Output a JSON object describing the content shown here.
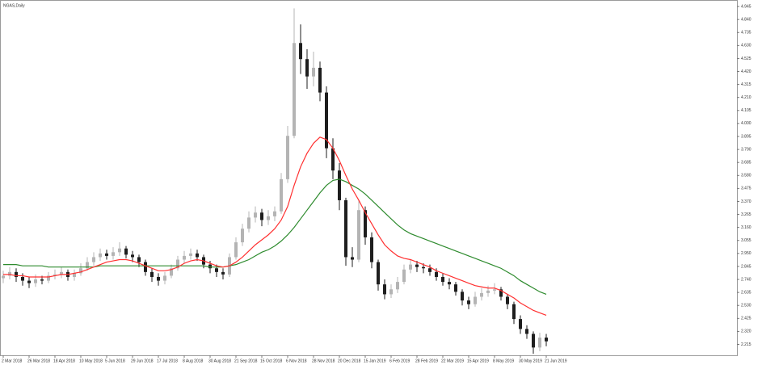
{
  "chart_data": {
    "type": "candlestick",
    "title": "NGAS,Daily",
    "categories": [
      "2 Mar 2018",
      null,
      null,
      null,
      "26 Mar 2018",
      null,
      null,
      null,
      "18 Apr 2018",
      null,
      null,
      null,
      "10 May 2018",
      null,
      null,
      null,
      "5 Jun 2018",
      null,
      null,
      null,
      "29 Jun 2018",
      null,
      null,
      null,
      "17 Jul 2018",
      null,
      null,
      null,
      "8 Aug 2018",
      null,
      null,
      null,
      "30 Aug 2018",
      null,
      null,
      null,
      "21 Sep 2018",
      null,
      null,
      null,
      "15 Oct 2018",
      null,
      null,
      null,
      "6 Nov 2018",
      null,
      null,
      null,
      "28 Nov 2018",
      null,
      null,
      null,
      "20 Dec 2018",
      null,
      null,
      null,
      "15 Jan 2019",
      null,
      null,
      null,
      "6 Feb 2019",
      null,
      null,
      null,
      "28 Feb 2019",
      null,
      null,
      null,
      "22 Mar 2019",
      null,
      null,
      null,
      "15 Apr 2019",
      null,
      null,
      null,
      "8 May 2019",
      null,
      null,
      null,
      "30 May 2019",
      null,
      null,
      null,
      "21 Jun 2019"
    ],
    "open": [
      2.75,
      2.77,
      2.8,
      2.76,
      2.73,
      2.71,
      2.74,
      2.73,
      2.77,
      2.78,
      2.8,
      2.76,
      2.79,
      2.83,
      2.88,
      2.92,
      2.95,
      2.93,
      2.96,
      2.99,
      2.94,
      2.92,
      2.88,
      2.8,
      2.76,
      2.73,
      2.77,
      2.83,
      2.9,
      2.93,
      2.95,
      2.92,
      2.86,
      2.83,
      2.8,
      2.78,
      2.92,
      3.04,
      3.15,
      3.24,
      3.28,
      3.22,
      3.25,
      3.29,
      3.55,
      3.9,
      4.65,
      4.52,
      4.38,
      4.45,
      4.25,
      3.8,
      3.62,
      3.38,
      2.92,
      2.9,
      3.3,
      3.08,
      2.88,
      2.7,
      2.62,
      2.66,
      2.72,
      2.82,
      2.86,
      2.84,
      2.83,
      2.8,
      2.76,
      2.72,
      2.7,
      2.64,
      2.57,
      2.54,
      2.6,
      2.63,
      2.65,
      2.66,
      2.6,
      2.54,
      2.42,
      2.34,
      2.3,
      2.19,
      2.27
    ],
    "high": [
      2.81,
      2.84,
      2.83,
      2.79,
      2.76,
      2.78,
      2.77,
      2.8,
      2.82,
      2.84,
      2.82,
      2.82,
      2.87,
      2.92,
      2.96,
      2.99,
      2.98,
      3.0,
      3.04,
      3.01,
      2.97,
      2.94,
      2.9,
      2.83,
      2.79,
      2.8,
      2.86,
      2.93,
      2.97,
      2.99,
      2.98,
      2.94,
      2.89,
      2.86,
      2.83,
      2.95,
      3.08,
      3.19,
      3.29,
      3.33,
      3.31,
      3.3,
      3.33,
      3.6,
      3.98,
      4.93,
      4.8,
      4.6,
      4.58,
      4.5,
      4.3,
      3.88,
      3.68,
      3.4,
      3.0,
      3.38,
      3.33,
      3.12,
      2.9,
      2.74,
      2.7,
      2.76,
      2.86,
      2.9,
      2.89,
      2.87,
      2.86,
      2.83,
      2.79,
      2.75,
      2.72,
      2.66,
      2.6,
      2.64,
      2.67,
      2.69,
      2.71,
      2.68,
      2.62,
      2.56,
      2.45,
      2.37,
      2.32,
      2.31,
      2.3
    ],
    "low": [
      2.71,
      2.74,
      2.72,
      2.69,
      2.67,
      2.68,
      2.7,
      2.71,
      2.74,
      2.75,
      2.73,
      2.73,
      2.77,
      2.81,
      2.85,
      2.89,
      2.9,
      2.9,
      2.93,
      2.91,
      2.88,
      2.84,
      2.77,
      2.72,
      2.69,
      2.7,
      2.75,
      2.81,
      2.87,
      2.9,
      2.89,
      2.83,
      2.79,
      2.76,
      2.74,
      2.76,
      2.9,
      3.01,
      3.12,
      3.2,
      3.17,
      3.18,
      3.21,
      3.27,
      3.52,
      3.88,
      4.4,
      4.28,
      4.3,
      4.18,
      3.72,
      3.55,
      3.3,
      2.85,
      2.84,
      2.88,
      3.02,
      2.83,
      2.65,
      2.58,
      2.59,
      2.63,
      2.7,
      2.79,
      2.8,
      2.79,
      2.77,
      2.73,
      2.69,
      2.66,
      2.61,
      2.53,
      2.5,
      2.52,
      2.57,
      2.6,
      2.62,
      2.57,
      2.5,
      2.38,
      2.3,
      2.26,
      2.14,
      2.16,
      2.2
    ],
    "close": [
      2.77,
      2.8,
      2.76,
      2.73,
      2.71,
      2.74,
      2.73,
      2.77,
      2.78,
      2.8,
      2.76,
      2.79,
      2.83,
      2.88,
      2.92,
      2.95,
      2.93,
      2.96,
      2.99,
      2.94,
      2.92,
      2.88,
      2.8,
      2.76,
      2.73,
      2.77,
      2.83,
      2.9,
      2.93,
      2.95,
      2.92,
      2.86,
      2.83,
      2.8,
      2.78,
      2.92,
      3.04,
      3.15,
      3.24,
      3.28,
      3.22,
      3.25,
      3.29,
      3.55,
      3.9,
      4.65,
      4.52,
      4.38,
      4.45,
      4.25,
      3.8,
      3.62,
      3.38,
      2.92,
      2.9,
      3.3,
      3.08,
      2.88,
      2.7,
      2.62,
      2.66,
      2.72,
      2.82,
      2.86,
      2.84,
      2.83,
      2.8,
      2.76,
      2.72,
      2.7,
      2.64,
      2.57,
      2.54,
      2.6,
      2.63,
      2.65,
      2.66,
      2.6,
      2.54,
      2.42,
      2.34,
      2.3,
      2.19,
      2.27,
      2.24
    ],
    "up_color": "#b4b4b4",
    "down_color": "#1e1e1e",
    "overlays": [
      {
        "color": "#2e8b2e",
        "values": [
          2.86,
          2.86,
          2.86,
          2.85,
          2.85,
          2.85,
          2.85,
          2.84,
          2.84,
          2.84,
          2.84,
          2.84,
          2.84,
          2.84,
          2.84,
          2.85,
          2.85,
          2.85,
          2.85,
          2.85,
          2.85,
          2.85,
          2.85,
          2.85,
          2.85,
          2.85,
          2.85,
          2.85,
          2.85,
          2.85,
          2.85,
          2.85,
          2.84,
          2.84,
          2.84,
          2.85,
          2.86,
          2.88,
          2.9,
          2.93,
          2.96,
          2.98,
          3.01,
          3.05,
          3.1,
          3.16,
          3.23,
          3.3,
          3.37,
          3.44,
          3.5,
          3.54,
          3.55,
          3.53,
          3.5,
          3.47,
          3.43,
          3.38,
          3.33,
          3.28,
          3.23,
          3.18,
          3.14,
          3.11,
          3.09,
          3.07,
          3.05,
          3.03,
          3.01,
          2.99,
          2.97,
          2.95,
          2.93,
          2.91,
          2.89,
          2.87,
          2.85,
          2.83,
          2.8,
          2.77,
          2.73,
          2.7,
          2.67,
          2.64,
          2.62
        ]
      },
      {
        "color": "#ff3030",
        "values": [
          2.78,
          2.78,
          2.77,
          2.77,
          2.76,
          2.76,
          2.76,
          2.76,
          2.77,
          2.78,
          2.78,
          2.79,
          2.8,
          2.82,
          2.84,
          2.86,
          2.88,
          2.89,
          2.9,
          2.9,
          2.89,
          2.87,
          2.85,
          2.83,
          2.81,
          2.81,
          2.82,
          2.84,
          2.87,
          2.89,
          2.9,
          2.89,
          2.87,
          2.85,
          2.84,
          2.85,
          2.88,
          2.92,
          2.97,
          3.02,
          3.06,
          3.1,
          3.15,
          3.22,
          3.33,
          3.5,
          3.65,
          3.76,
          3.84,
          3.89,
          3.87,
          3.8,
          3.7,
          3.58,
          3.47,
          3.38,
          3.28,
          3.19,
          3.1,
          3.02,
          2.97,
          2.93,
          2.91,
          2.9,
          2.88,
          2.86,
          2.84,
          2.81,
          2.79,
          2.77,
          2.75,
          2.73,
          2.71,
          2.69,
          2.68,
          2.67,
          2.67,
          2.65,
          2.62,
          2.59,
          2.55,
          2.52,
          2.49,
          2.47,
          2.45
        ]
      }
    ],
    "ylim": [
      2.127,
      4.978
    ],
    "yticks": [
      4.945,
      {
        "value": 4.84,
        "label": "4.840"
      },
      4.735,
      {
        "value": 4.63,
        "label": "4.630"
      },
      4.525,
      {
        "value": 4.42,
        "label": "4.420"
      },
      4.315,
      {
        "value": 4.21,
        "label": "4.210"
      },
      4.105,
      {
        "value": 4,
        "label": "4.000"
      },
      3.895,
      {
        "value": 3.79,
        "label": "3.790"
      },
      3.685,
      {
        "value": 3.58,
        "label": "3.580"
      },
      3.475,
      {
        "value": 3.37,
        "label": "3.370"
      },
      3.265,
      {
        "value": 3.16,
        "label": "3.160"
      },
      3.055,
      {
        "value": 2.95,
        "label": "2.950"
      },
      2.845,
      {
        "value": 2.74,
        "label": "2.740"
      },
      2.635,
      {
        "value": 2.53,
        "label": "2.530"
      },
      2.425,
      {
        "value": 2.32,
        "label": "2.320"
      },
      2.215
    ],
    "grid": false
  }
}
